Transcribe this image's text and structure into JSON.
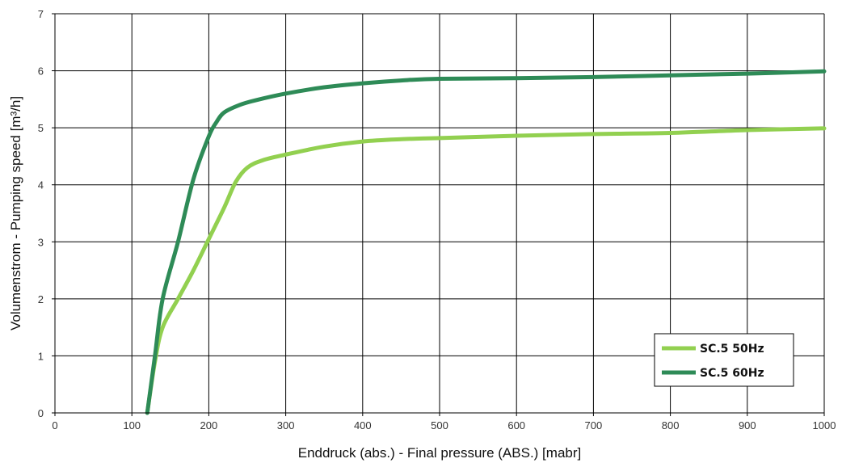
{
  "chart_data": {
    "type": "line",
    "xlabel": "Enddruck (abs.) - Final pressure (ABS.) [mabr]",
    "ylabel": "Volumenstrom - Pumping speed [m³/h]",
    "xlim": [
      0,
      1000
    ],
    "ylim": [
      0,
      7
    ],
    "x_ticks": [
      0,
      100,
      200,
      300,
      400,
      500,
      600,
      700,
      800,
      900,
      1000
    ],
    "y_ticks": [
      0,
      1,
      2,
      3,
      4,
      5,
      6,
      7
    ],
    "grid": true,
    "legend_position": "bottom-right",
    "series": [
      {
        "name": "SC.5 50Hz",
        "color": "#92d050",
        "x": [
          120,
          130,
          140,
          160,
          180,
          200,
          220,
          235,
          250,
          270,
          300,
          350,
          400,
          450,
          500,
          600,
          700,
          800,
          900,
          1000
        ],
        "y": [
          0,
          0.9,
          1.5,
          2.0,
          2.5,
          3.05,
          3.6,
          4.05,
          4.3,
          4.43,
          4.53,
          4.67,
          4.76,
          4.8,
          4.82,
          4.86,
          4.89,
          4.91,
          4.96,
          4.99
        ]
      },
      {
        "name": "SC.5 60Hz",
        "color": "#2e8b57",
        "x": [
          120,
          130,
          140,
          160,
          180,
          200,
          210,
          220,
          240,
          260,
          300,
          350,
          400,
          450,
          500,
          600,
          700,
          800,
          900,
          1000
        ],
        "y": [
          0,
          1.0,
          2.0,
          3.0,
          4.1,
          4.85,
          5.1,
          5.27,
          5.4,
          5.48,
          5.6,
          5.71,
          5.78,
          5.83,
          5.86,
          5.87,
          5.89,
          5.92,
          5.95,
          5.99
        ]
      }
    ]
  }
}
